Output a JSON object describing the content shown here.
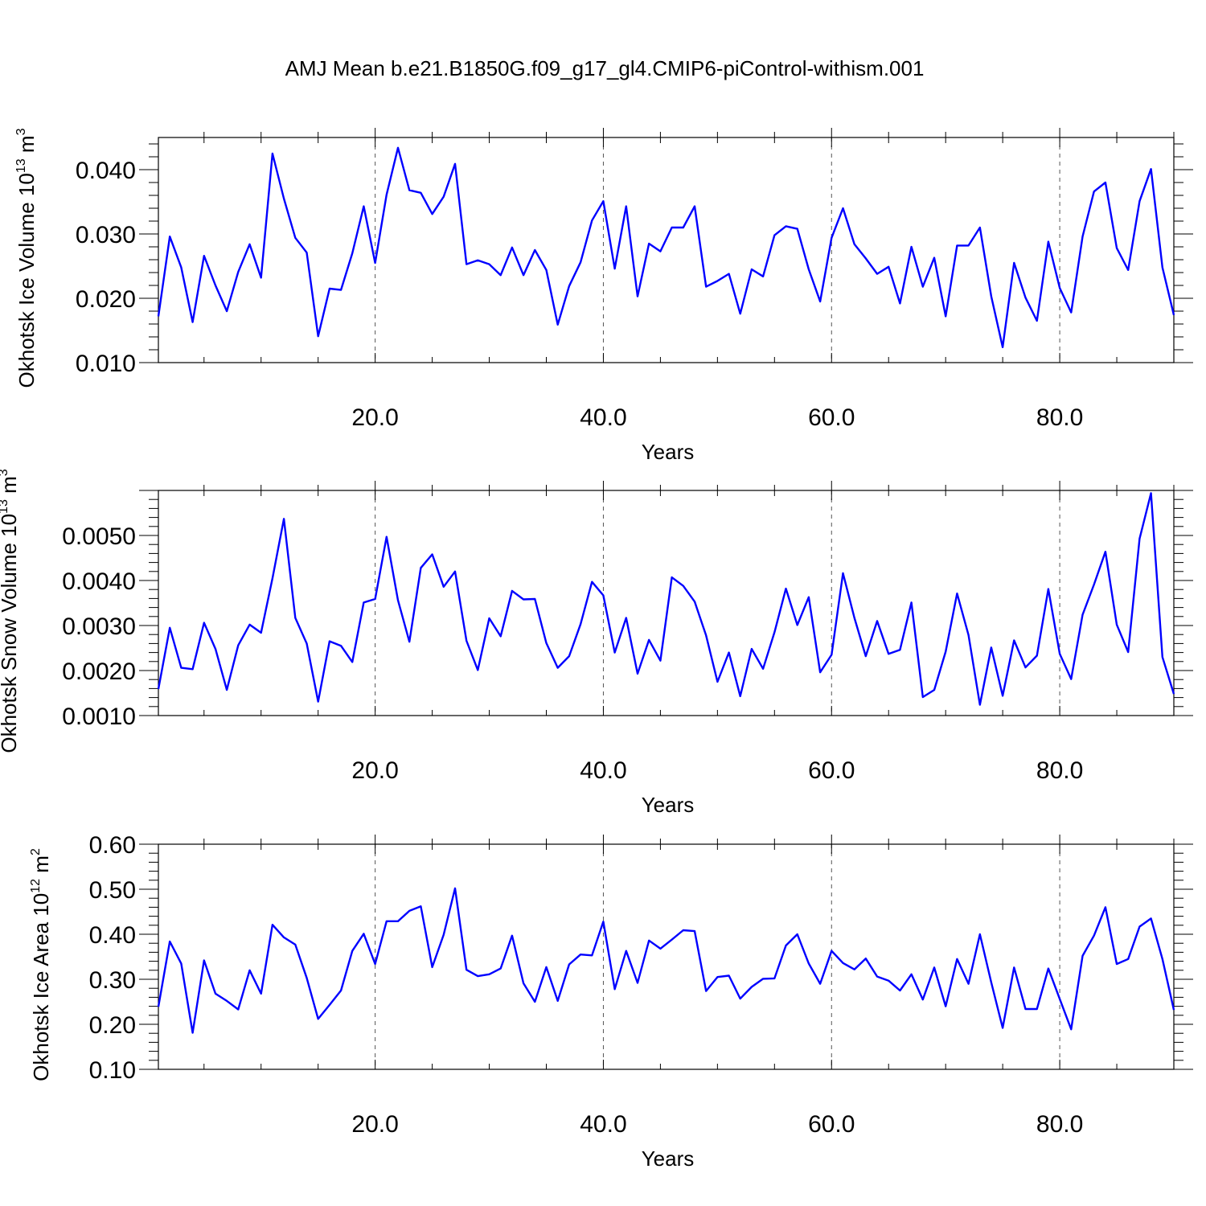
{
  "figure": {
    "title": "AMJ Mean b.e21.B1850G.f09_g17_gl4.CMIP6-piControl-withism.001",
    "line_color": "#0000ff"
  },
  "chart_data": [
    {
      "type": "line",
      "title": "",
      "xlabel": "Years",
      "ylabel": "Okhotsk Ice Volume 10",
      "ylabel_exp": "13",
      "ylabel_unit": " m",
      "ylabel_unit_exp": "3",
      "xlim": [
        1,
        90
      ],
      "ylim": [
        0.01,
        0.045
      ],
      "xticks": [
        20,
        40,
        60,
        80
      ],
      "xtick_labels": [
        "20.0",
        "40.0",
        "60.0",
        "80.0"
      ],
      "yticks": [
        0.01,
        0.02,
        0.03,
        0.04
      ],
      "ytick_labels": [
        "0.010",
        "0.020",
        "0.030",
        "0.040"
      ],
      "grid": "dashed vertical at x ticks",
      "series": [
        {
          "x": [
            1,
            2,
            3,
            4,
            5,
            6,
            7,
            8,
            9,
            10,
            11,
            12,
            13,
            14,
            15,
            16,
            17,
            18,
            19,
            20,
            21,
            22,
            23,
            24,
            25,
            26,
            27,
            28,
            29,
            30,
            31,
            32,
            33,
            34,
            35,
            36,
            37,
            38,
            39,
            40,
            41,
            42,
            43,
            44,
            45,
            46,
            47,
            48,
            49,
            50,
            51,
            52,
            53,
            54,
            55,
            56,
            57,
            58,
            59,
            60,
            61,
            62,
            63,
            64,
            65,
            66,
            67,
            68,
            69,
            70,
            71,
            72,
            73,
            74,
            75,
            76,
            77,
            78,
            79,
            80,
            81,
            82,
            83,
            84,
            85,
            86,
            87,
            88,
            89,
            90
          ],
          "values": [
            0.0172,
            0.0296,
            0.0248,
            0.0163,
            0.0266,
            0.022,
            0.018,
            0.0241,
            0.0284,
            0.0232,
            0.0425,
            0.0355,
            0.0294,
            0.0271,
            0.0141,
            0.0215,
            0.0213,
            0.027,
            0.0343,
            0.0255,
            0.0361,
            0.0434,
            0.0368,
            0.0364,
            0.0331,
            0.0358,
            0.0409,
            0.0253,
            0.0259,
            0.0253,
            0.0236,
            0.0279,
            0.0236,
            0.0275,
            0.0244,
            0.0159,
            0.0219,
            0.0256,
            0.0321,
            0.0351,
            0.0246,
            0.0343,
            0.0203,
            0.0285,
            0.0273,
            0.031,
            0.031,
            0.0343,
            0.0218,
            0.0227,
            0.0238,
            0.0176,
            0.0245,
            0.0234,
            0.0298,
            0.0312,
            0.0308,
            0.0245,
            0.0195,
            0.0294,
            0.034,
            0.0284,
            0.0262,
            0.0238,
            0.0249,
            0.0192,
            0.028,
            0.0218,
            0.0263,
            0.0172,
            0.0282,
            0.0282,
            0.031,
            0.0203,
            0.0124,
            0.0255,
            0.0201,
            0.0165,
            0.0288,
            0.0216,
            0.0178,
            0.0296,
            0.0366,
            0.038,
            0.0278,
            0.0244,
            0.0351,
            0.0401,
            0.0248,
            0.0174
          ]
        }
      ]
    },
    {
      "type": "line",
      "title": "",
      "xlabel": "Years",
      "ylabel": "Okhotsk Snow Volume 10",
      "ylabel_exp": "13",
      "ylabel_unit": " m",
      "ylabel_unit_exp": "3",
      "xlim": [
        1,
        90
      ],
      "ylim": [
        0.001,
        0.006
      ],
      "xticks": [
        20,
        40,
        60,
        80
      ],
      "xtick_labels": [
        "20.0",
        "40.0",
        "60.0",
        "80.0"
      ],
      "yticks": [
        0.001,
        0.002,
        0.003,
        0.004,
        0.005
      ],
      "ytick_labels": [
        "0.0010",
        "0.0020",
        "0.0030",
        "0.0040",
        "0.0050"
      ],
      "grid": "dashed vertical at x ticks",
      "series": [
        {
          "x": [
            1,
            2,
            3,
            4,
            5,
            6,
            7,
            8,
            9,
            10,
            11,
            12,
            13,
            14,
            15,
            16,
            17,
            18,
            19,
            20,
            21,
            22,
            23,
            24,
            25,
            26,
            27,
            28,
            29,
            30,
            31,
            32,
            33,
            34,
            35,
            36,
            37,
            38,
            39,
            40,
            41,
            42,
            43,
            44,
            45,
            46,
            47,
            48,
            49,
            50,
            51,
            52,
            53,
            54,
            55,
            56,
            57,
            58,
            59,
            60,
            61,
            62,
            63,
            64,
            65,
            66,
            67,
            68,
            69,
            70,
            71,
            72,
            73,
            74,
            75,
            76,
            77,
            78,
            79,
            80,
            81,
            82,
            83,
            84,
            85,
            86,
            87,
            88,
            89,
            90
          ],
          "values": [
            0.00159,
            0.00295,
            0.00206,
            0.00203,
            0.00306,
            0.00248,
            0.00157,
            0.00256,
            0.00302,
            0.00284,
            0.00405,
            0.00537,
            0.00317,
            0.0026,
            0.00131,
            0.00265,
            0.00255,
            0.00219,
            0.00351,
            0.00359,
            0.00497,
            0.00356,
            0.00264,
            0.00428,
            0.00458,
            0.00386,
            0.0042,
            0.00266,
            0.00201,
            0.00316,
            0.00276,
            0.00377,
            0.00358,
            0.00359,
            0.00261,
            0.00206,
            0.00232,
            0.00303,
            0.00397,
            0.00367,
            0.0024,
            0.00317,
            0.00193,
            0.00268,
            0.00222,
            0.00407,
            0.00388,
            0.00353,
            0.00278,
            0.00175,
            0.0024,
            0.00143,
            0.00248,
            0.00204,
            0.00285,
            0.00382,
            0.00301,
            0.00363,
            0.00196,
            0.00235,
            0.00416,
            0.00317,
            0.00232,
            0.0031,
            0.00237,
            0.00246,
            0.00351,
            0.00141,
            0.00157,
            0.00242,
            0.00371,
            0.00279,
            0.00124,
            0.00251,
            0.00144,
            0.00267,
            0.00207,
            0.00233,
            0.00381,
            0.00237,
            0.00181,
            0.00324,
            0.00391,
            0.00464,
            0.00302,
            0.00241,
            0.00493,
            0.00594,
            0.0023,
            0.00148
          ]
        }
      ]
    },
    {
      "type": "line",
      "title": "",
      "xlabel": "Years",
      "ylabel": "Okhotsk Ice Area 10",
      "ylabel_exp": "12",
      "ylabel_unit": " m",
      "ylabel_unit_exp": "2",
      "xlim": [
        1,
        90
      ],
      "ylim": [
        0.1,
        0.6
      ],
      "xticks": [
        20,
        40,
        60,
        80
      ],
      "xtick_labels": [
        "20.0",
        "40.0",
        "60.0",
        "80.0"
      ],
      "yticks": [
        0.1,
        0.2,
        0.3,
        0.4,
        0.5,
        0.6
      ],
      "ytick_labels": [
        "0.10",
        "0.20",
        "0.30",
        "0.40",
        "0.50",
        "0.60"
      ],
      "grid": "dashed vertical at x ticks",
      "series": [
        {
          "x": [
            1,
            2,
            3,
            4,
            5,
            6,
            7,
            8,
            9,
            10,
            11,
            12,
            13,
            14,
            15,
            16,
            17,
            18,
            19,
            20,
            21,
            22,
            23,
            24,
            25,
            26,
            27,
            28,
            29,
            30,
            31,
            32,
            33,
            34,
            35,
            36,
            37,
            38,
            39,
            40,
            41,
            42,
            43,
            44,
            45,
            46,
            47,
            48,
            49,
            50,
            51,
            52,
            53,
            54,
            55,
            56,
            57,
            58,
            59,
            60,
            61,
            62,
            63,
            64,
            65,
            66,
            67,
            68,
            69,
            70,
            71,
            72,
            73,
            74,
            75,
            76,
            77,
            78,
            79,
            80,
            81,
            82,
            83,
            84,
            85,
            86,
            87,
            88,
            89,
            90
          ],
          "values": [
            0.239,
            0.384,
            0.335,
            0.181,
            0.342,
            0.268,
            0.252,
            0.233,
            0.32,
            0.268,
            0.421,
            0.393,
            0.377,
            0.303,
            0.212,
            0.243,
            0.275,
            0.363,
            0.401,
            0.334,
            0.429,
            0.429,
            0.452,
            0.462,
            0.327,
            0.399,
            0.502,
            0.321,
            0.307,
            0.311,
            0.324,
            0.397,
            0.291,
            0.25,
            0.327,
            0.252,
            0.333,
            0.355,
            0.353,
            0.428,
            0.278,
            0.363,
            0.292,
            0.386,
            0.368,
            0.388,
            0.409,
            0.407,
            0.274,
            0.305,
            0.308,
            0.257,
            0.283,
            0.301,
            0.302,
            0.375,
            0.4,
            0.335,
            0.29,
            0.363,
            0.336,
            0.322,
            0.346,
            0.306,
            0.297,
            0.275,
            0.311,
            0.255,
            0.326,
            0.24,
            0.345,
            0.29,
            0.4,
            0.293,
            0.192,
            0.326,
            0.234,
            0.234,
            0.324,
            0.256,
            0.189,
            0.352,
            0.397,
            0.46,
            0.334,
            0.345,
            0.417,
            0.435,
            0.345,
            0.232
          ]
        }
      ]
    }
  ]
}
